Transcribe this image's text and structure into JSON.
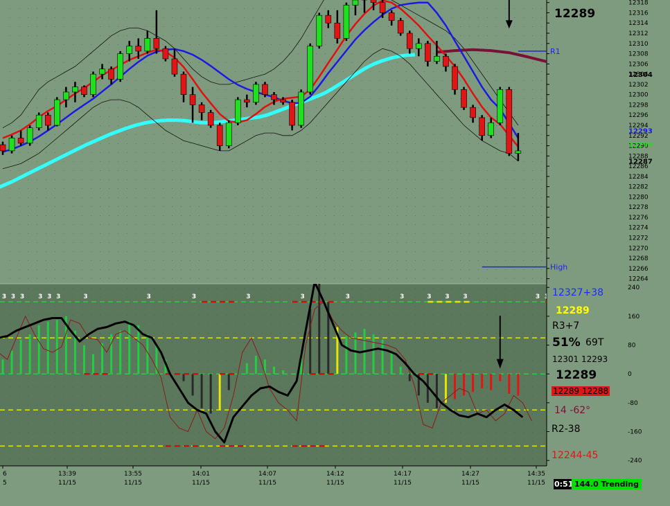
{
  "chart_data": {
    "type": "line",
    "colors": {
      "background": "#7f9b7f",
      "lower_panel": "#5c785c",
      "fast_ma": "#e01010",
      "mid_ma": "#1a1ae0",
      "slow_ma": "#33ffff",
      "long_ma": "#7a1035",
      "band": "#111111",
      "up_bar": "#1ee01e",
      "down_bar": "#e01515",
      "osc_line": "#000000",
      "ref_green": "#2ecc40",
      "ref_yellow": "#e6e600",
      "ref_red": "#cc1010"
    },
    "price_panel": {
      "y_ticks": [
        "12318",
        "12316",
        "12314",
        "12312",
        "12310",
        "12308",
        "12306",
        "12304",
        "12302",
        "12300",
        "12298",
        "12296",
        "12294",
        "12292",
        "12290",
        "12288",
        "12286",
        "12284",
        "12282",
        "12280",
        "12278",
        "12276",
        "12274",
        "12272",
        "12270",
        "12268",
        "12266",
        "12264"
      ],
      "ylim": [
        12263,
        12318.5
      ],
      "right_labels": [
        {
          "text": "12304",
          "value": 12304,
          "color": "#000000"
        },
        {
          "text": "12293",
          "value": 12293,
          "color": "#1a1ae0"
        },
        {
          "text": "12290",
          "value": 12290.3,
          "color": "#1ee01e"
        },
        {
          "text": "12287",
          "value": 12287,
          "color": "#000000"
        }
      ],
      "current_price": "12289",
      "levels": [
        {
          "name": "R1",
          "value": 12308.5,
          "x_start": 57,
          "color": "#2222ee"
        },
        {
          "name": "High",
          "value": 12266.3,
          "x_start": 53,
          "color": "#2222ee"
        }
      ],
      "arrow": {
        "x": 56,
        "value_top": 12318.5,
        "value_bottom": 12314
      },
      "candles": [
        [
          12290.2,
          12290.8,
          12288.2,
          12289.0
        ],
        [
          12289.0,
          12292.0,
          12288.5,
          12291.5
        ],
        [
          12291.5,
          12293.0,
          12290.0,
          12290.5
        ],
        [
          12290.5,
          12294.0,
          12290.0,
          12293.5
        ],
        [
          12293.5,
          12296.5,
          12293.0,
          12296.0
        ],
        [
          12296.0,
          12296.5,
          12293.0,
          12294.0
        ],
        [
          12294.0,
          12299.5,
          12293.8,
          12299.0
        ],
        [
          12299.0,
          12301.5,
          12297.5,
          12300.5
        ],
        [
          12300.5,
          12302.5,
          12298.5,
          12301.5
        ],
        [
          12301.5,
          12301.8,
          12299.5,
          12300.0
        ],
        [
          12300.0,
          12304.5,
          12299.5,
          12304.0
        ],
        [
          12304.0,
          12306.0,
          12303.0,
          12305.0
        ],
        [
          12305.0,
          12305.5,
          12302.0,
          12303.0
        ],
        [
          12303.0,
          12308.5,
          12302.5,
          12308.0
        ],
        [
          12308.0,
          12310.5,
          12306.5,
          12309.5
        ],
        [
          12309.5,
          12311.0,
          12307.0,
          12308.5
        ],
        [
          12308.5,
          12312.5,
          12308.0,
          12311.0
        ],
        [
          12311.0,
          12316.5,
          12308.0,
          12309.0
        ],
        [
          12309.0,
          12309.5,
          12306.5,
          12307.0
        ],
        [
          12307.0,
          12309.0,
          12303.5,
          12304.0
        ],
        [
          12304.0,
          12304.5,
          12298.5,
          12300.0
        ],
        [
          12300.0,
          12301.5,
          12294.5,
          12298.0
        ],
        [
          12298.0,
          12298.5,
          12295.0,
          12296.5
        ],
        [
          12296.5,
          12297.0,
          12293.5,
          12294.0
        ],
        [
          12294.0,
          12294.5,
          12289.0,
          12290.0
        ],
        [
          12290.0,
          12295.0,
          12289.5,
          12294.5
        ],
        [
          12294.5,
          12299.5,
          12294.0,
          12299.0
        ],
        [
          12299.0,
          12300.0,
          12297.5,
          12298.5
        ],
        [
          12298.5,
          12302.5,
          12298.0,
          12302.0
        ],
        [
          12302.0,
          12302.5,
          12299.5,
          12300.0
        ],
        [
          12300.0,
          12300.5,
          12298.0,
          12299.0
        ],
        [
          12299.0,
          12299.5,
          12298.0,
          12298.5
        ],
        [
          12298.5,
          12299.0,
          12293.0,
          12294.0
        ],
        [
          12294.0,
          12301.0,
          12293.5,
          12300.5
        ],
        [
          12300.5,
          12310.0,
          12300.0,
          12309.5
        ],
        [
          12309.5,
          12316.0,
          12309.0,
          12315.5
        ],
        [
          12315.5,
          12316.5,
          12313.0,
          12314.0
        ],
        [
          12314.0,
          12316.5,
          12310.0,
          12311.0
        ],
        [
          12311.0,
          12318.0,
          12310.5,
          12317.5
        ],
        [
          12317.5,
          12319.0,
          12315.5,
          12318.5
        ],
        [
          12318.5,
          12320.0,
          12316.0,
          12319.5
        ],
        [
          12319.5,
          12320.0,
          12316.5,
          12318.0
        ],
        [
          12318.0,
          12318.5,
          12315.0,
          12316.0
        ],
        [
          12316.0,
          12316.5,
          12313.5,
          12314.5
        ],
        [
          12314.5,
          12315.0,
          12311.5,
          12312.0
        ],
        [
          12312.0,
          12312.5,
          12308.0,
          12309.0
        ],
        [
          12309.0,
          12311.0,
          12307.5,
          12310.0
        ],
        [
          12310.0,
          12310.5,
          12305.5,
          12306.5
        ],
        [
          12306.5,
          12310.5,
          12306.0,
          12307.5
        ],
        [
          12307.5,
          12308.0,
          12304.5,
          12305.5
        ],
        [
          12305.5,
          12306.0,
          12300.0,
          12301.0
        ],
        [
          12301.0,
          12301.5,
          12297.0,
          12297.5
        ],
        [
          12297.5,
          12298.0,
          12294.5,
          12295.5
        ],
        [
          12295.5,
          12296.0,
          12291.0,
          12292.0
        ],
        [
          12292.0,
          12295.5,
          12291.5,
          12294.5
        ],
        [
          12294.5,
          12301.5,
          12294.0,
          12301.0
        ],
        [
          12301.0,
          12301.5,
          12288.0,
          12288.5
        ],
        [
          12288.5,
          12292.5,
          12287.0,
          12289.0
        ]
      ],
      "fast_ma": [
        12291.5,
        12292.2,
        12293.0,
        12294.2,
        12295.6,
        12296.8,
        12297.8,
        12299.0,
        12300.2,
        12301.3,
        12302.5,
        12303.8,
        12304.8,
        12305.8,
        12306.8,
        12307.5,
        12308.2,
        12308.8,
        12308.4,
        12307.2,
        12305.4,
        12303.0,
        12300.5,
        12298.3,
        12296.2,
        12294.8,
        12294.6,
        12295.0,
        12296.2,
        12297.6,
        12298.6,
        12299.2,
        12299.4,
        12299.6,
        12301.0,
        12303.5,
        12306.2,
        12308.8,
        12311.5,
        12313.8,
        12315.8,
        12317.4,
        12318.4,
        12318.0,
        12316.8,
        12315.2,
        12313.5,
        12311.5,
        12309.6,
        12307.6,
        12305.5,
        12303.0,
        12300.2,
        12297.6,
        12295.5,
        12294.2,
        12292.0,
        12289.8
      ],
      "mid_ma": [
        12288.8,
        12289.3,
        12290.0,
        12290.8,
        12291.8,
        12293.0,
        12294.2,
        12295.5,
        12296.8,
        12298.0,
        12299.2,
        12300.6,
        12302.0,
        12303.5,
        12305.0,
        12306.4,
        12307.6,
        12308.4,
        12308.8,
        12308.9,
        12308.5,
        12307.8,
        12306.8,
        12305.6,
        12304.3,
        12303.0,
        12301.9,
        12301.1,
        12300.5,
        12300.0,
        12299.5,
        12298.8,
        12298.3,
        12298.4,
        12299.6,
        12301.8,
        12304.2,
        12306.4,
        12308.6,
        12310.8,
        12312.6,
        12314.2,
        12315.6,
        12316.8,
        12317.5,
        12317.8,
        12318.0,
        12318.0,
        12316.0,
        12313.5,
        12310.5,
        12307.5,
        12304.5,
        12301.5,
        12299.0,
        12297.2,
        12294.4,
        12291.5
      ],
      "slow_ma": [
        12281.6,
        12282.3,
        12283.0,
        12283.8,
        12284.6,
        12285.4,
        12286.2,
        12287.0,
        12287.8,
        12288.6,
        12289.4,
        12290.2,
        12290.9,
        12291.6,
        12292.3,
        12292.9,
        12293.5,
        12294.0,
        12294.4,
        12294.7,
        12294.9,
        12295.0,
        12295.0,
        12294.9,
        12294.7,
        12294.5,
        12294.5,
        12294.6,
        12294.8,
        12295.0,
        12295.2,
        12295.4,
        12295.6,
        12296.0,
        12296.6,
        12297.2,
        12297.8,
        12298.4,
        12299.0,
        12299.6,
        12300.3,
        12301.2,
        12302.2,
        12303.2,
        12304.2,
        12305.2,
        12306.0,
        12306.6,
        12307.1,
        12307.5,
        12307.7,
        12307.8
      ],
      "long_ma": [
        [
          48,
          12308.3
        ],
        [
          50,
          12308.6
        ],
        [
          52,
          12308.8
        ],
        [
          54,
          12308.6
        ],
        [
          56,
          12308.2
        ],
        [
          58,
          12307.4
        ],
        [
          60,
          12306.5
        ],
        [
          62,
          12305.5
        ],
        [
          64,
          12304.4
        ],
        [
          66,
          12303.3
        ]
      ],
      "upper_band": [
        12293.5,
        12294.5,
        12296.0,
        12298.5,
        12301.0,
        12302.5,
        12303.5,
        12304.5,
        12305.5,
        12307.0,
        12308.5,
        12310.0,
        12311.5,
        12312.5,
        12313.0,
        12313.0,
        12312.5,
        12311.5,
        12310.5,
        12309.0,
        12307.0,
        12305.0,
        12303.5,
        12302.5,
        12302.0,
        12302.0,
        12302.5,
        12303.0,
        12303.5,
        12304.0,
        12305.0,
        12306.5,
        12308.5,
        12311.0,
        12314.0,
        12317.0,
        12320.0,
        12321.5,
        12322.0,
        12322.0,
        12321.5,
        12320.5,
        12319.5,
        12318.5,
        12317.5,
        12316.5,
        12315.5,
        12314.5,
        12313.5,
        12312.5,
        12311.0,
        12309.0,
        12306.5,
        12304.0,
        12301.5,
        12299.0,
        12296.5,
        12294.0
      ],
      "lower_band": [
        12285.5,
        12286.0,
        12286.5,
        12287.5,
        12288.5,
        12290.0,
        12291.5,
        12293.0,
        12294.5,
        12296.0,
        12297.5,
        12298.5,
        12299.0,
        12299.0,
        12298.5,
        12297.5,
        12296.0,
        12294.5,
        12293.0,
        12292.0,
        12291.0,
        12290.5,
        12290.0,
        12289.5,
        12289.0,
        12289.0,
        12290.0,
        12291.0,
        12292.0,
        12292.5,
        12292.5,
        12292.0,
        12292.0,
        12293.0,
        12294.5,
        12296.5,
        12298.5,
        12300.5,
        12302.5,
        12304.5,
        12306.5,
        12308.0,
        12309.0,
        12308.5,
        12307.5,
        12306.0,
        12304.0,
        12302.0,
        12300.0,
        12298.0,
        12296.0,
        12294.0,
        12292.5,
        12291.0,
        12290.0,
        12289.0,
        12288.5,
        12287.0
      ]
    },
    "osc_panel": {
      "y_ticks": [
        "240",
        "160",
        "80",
        "0",
        "-80",
        "-160",
        "-240"
      ],
      "ylim": [
        -255,
        250
      ],
      "ref_lines": [
        {
          "value": 200,
          "color": "#2ecc40"
        },
        {
          "value": 100,
          "color": "#e6e600"
        },
        {
          "value": 0,
          "color": "#2ecc40"
        },
        {
          "value": -100,
          "color": "#e6e600"
        },
        {
          "value": -200,
          "color": "#e6e600"
        }
      ],
      "histogram": [
        40,
        65,
        95,
        110,
        135,
        145,
        150,
        160,
        120,
        80,
        55,
        85,
        110,
        120,
        145,
        135,
        110,
        80,
        40,
        0,
        -20,
        -60,
        -95,
        -110,
        -100,
        -45,
        0,
        30,
        50,
        40,
        20,
        10,
        0,
        60,
        180,
        250,
        200,
        130,
        105,
        115,
        125,
        110,
        95,
        60,
        20,
        -20,
        -60,
        -80,
        -95,
        -80,
        -70,
        -60,
        -50,
        -40,
        -45,
        -20,
        -55,
        -60
      ],
      "hist_colors": [
        "g",
        "g",
        "g",
        "g",
        "g",
        "g",
        "g",
        "g",
        "g",
        "g",
        "g",
        "g",
        "g",
        "g",
        "g",
        "g",
        "g",
        "g",
        "g",
        "g",
        "k",
        "k",
        "k",
        "k",
        "y",
        "k",
        "g",
        "g",
        "g",
        "g",
        "g",
        "g",
        "g",
        "g",
        "k",
        "k",
        "k",
        "y",
        "g",
        "g",
        "g",
        "g",
        "g",
        "g",
        "g",
        "k",
        "k",
        "k",
        "k",
        "y",
        "r",
        "r",
        "r",
        "r",
        "r",
        "r",
        "r",
        "r"
      ],
      "osc_line": [
        100,
        105,
        120,
        130,
        140,
        150,
        155,
        155,
        120,
        90,
        110,
        125,
        130,
        140,
        145,
        135,
        110,
        100,
        60,
        0,
        -40,
        -80,
        -100,
        -110,
        -160,
        -190,
        -120,
        -90,
        -60,
        -40,
        -35,
        -50,
        -60,
        -20,
        120,
        255,
        200,
        140,
        80,
        65,
        60,
        65,
        70,
        65,
        55,
        30,
        0,
        -20,
        -50,
        -80,
        -100,
        -115,
        -120,
        -110,
        -120,
        -100,
        -85,
        -100,
        -120
      ],
      "thin_line": [
        60,
        40,
        100,
        160,
        110,
        70,
        60,
        75,
        150,
        140,
        100,
        95,
        60,
        110,
        120,
        100,
        80,
        40,
        -10,
        -120,
        -150,
        -160,
        -100,
        -160,
        -180,
        -150,
        -60,
        60,
        100,
        40,
        -40,
        -80,
        -100,
        -130,
        80,
        180,
        200,
        150,
        120,
        100,
        95,
        90,
        85,
        80,
        70,
        40,
        -30,
        -140,
        -150,
        -80,
        -60,
        -40,
        -50,
        -110,
        -100,
        -130,
        -110,
        -60,
        -80,
        -130
      ],
      "markers_3": [
        0,
        1,
        2,
        4,
        5,
        6,
        9,
        16,
        21,
        27,
        33,
        38,
        44,
        47,
        49,
        51,
        59,
        60
      ],
      "dash_top": [
        [
          47,
          52
        ]
      ],
      "dash_top_red": [
        [
          22,
          26
        ],
        [
          32,
          37
        ],
        [
          60,
          62
        ]
      ],
      "dash_mid_red": [
        [
          9,
          12
        ],
        [
          18,
          22
        ],
        [
          24,
          26
        ],
        [
          34,
          37
        ],
        [
          46,
          48
        ],
        [
          62,
          65
        ]
      ],
      "dash_bottom_red": [
        [
          18,
          22
        ],
        [
          24,
          27
        ],
        [
          32,
          36
        ]
      ],
      "arrow": {
        "x": 55,
        "value_top": 100,
        "value_bottom": 30
      }
    },
    "x_ticks": [
      {
        "time": "6",
        "date": "5"
      },
      {
        "time": "13:39",
        "date": "11/15"
      },
      {
        "time": "13:55",
        "date": "11/15"
      },
      {
        "time": "14:01",
        "date": "11/15"
      },
      {
        "time": "14:07",
        "date": "11/15"
      },
      {
        "time": "14:12",
        "date": "11/15"
      },
      {
        "time": "14:17",
        "date": "11/15"
      },
      {
        "time": "14:27",
        "date": "11/15"
      },
      {
        "time": "14:35",
        "date": "11/15"
      }
    ],
    "info_panel": {
      "high_pivot": "12327+38",
      "last_price_small": "12289",
      "r3": "R3+7",
      "pct": "51%",
      "ticks": "69T",
      "pair_prices": "12301 12293",
      "last_price_big": "12289",
      "bid_ask": "12289 12288",
      "angle": "14  -62°",
      "r2": "R2-38",
      "low_pivot": "12244-45"
    },
    "status": {
      "timer": "0:51",
      "mode": "144.0 Trending"
    }
  }
}
